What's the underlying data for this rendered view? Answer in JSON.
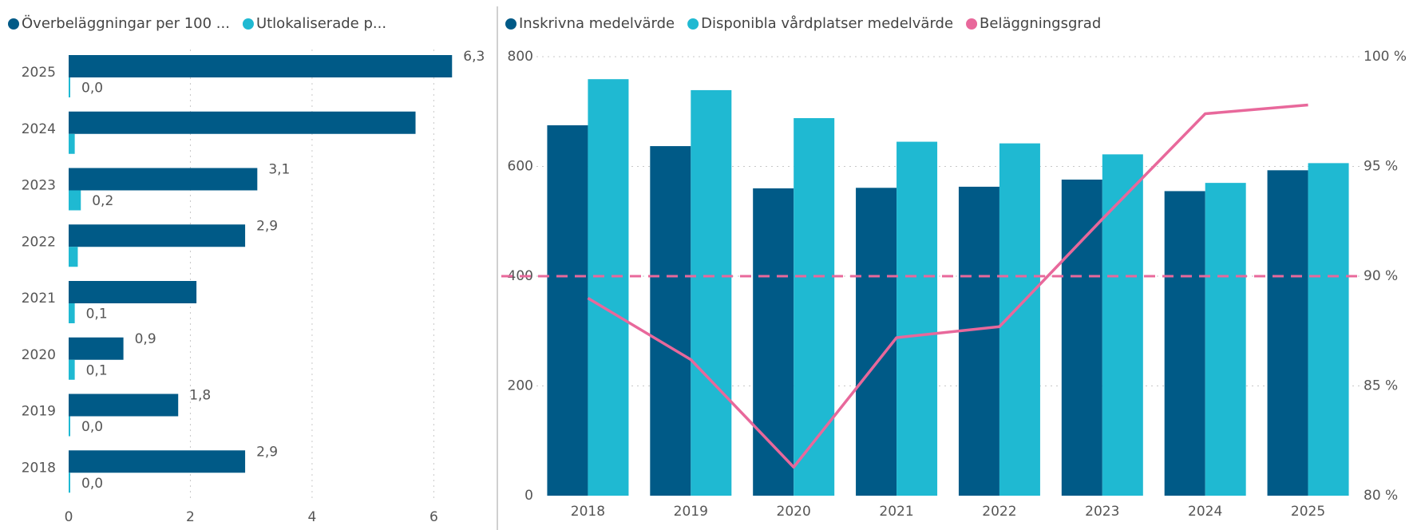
{
  "chart_data": [
    {
      "type": "hbar",
      "categories": [
        "2025",
        "2024",
        "2023",
        "2022",
        "2021",
        "2020",
        "2019",
        "2018"
      ],
      "series": [
        {
          "name": "Överbeläggningar per 100 ...",
          "color": "#005a87",
          "values": [
            6.3,
            5.7,
            3.1,
            2.9,
            2.1,
            0.9,
            1.8,
            2.9
          ],
          "value_labels": [
            "6,3",
            null,
            "3,1",
            "2,9",
            null,
            "0,9",
            "1,8",
            "2,9"
          ]
        },
        {
          "name": "Utlokaliserade p...",
          "color": "#1fb9d2",
          "values": [
            0.0,
            0.1,
            0.2,
            0.15,
            0.1,
            0.1,
            0.0,
            0.0
          ],
          "value_labels": [
            "0,0",
            null,
            "0,2",
            null,
            "0,1",
            "0,1",
            "0,0",
            "0,0"
          ]
        }
      ],
      "xlim": [
        0,
        6.9
      ],
      "xticks": [
        0,
        2,
        4,
        6
      ],
      "grid": true
    },
    {
      "type": "combo",
      "categories": [
        "2018",
        "2019",
        "2020",
        "2021",
        "2022",
        "2023",
        "2024",
        "2025"
      ],
      "series": [
        {
          "name": "Inskrivna medelvärde",
          "color": "#005a87",
          "type": "bar",
          "values": [
            675,
            637,
            560,
            561,
            563,
            576,
            555,
            593
          ]
        },
        {
          "name": "Disponibla vårdplatser medelvärde",
          "color": "#1fb9d2",
          "type": "bar",
          "values": [
            759,
            739,
            688,
            645,
            642,
            622,
            570,
            606
          ]
        },
        {
          "name": "Beläggningsgrad",
          "color": "#e8689b",
          "type": "line",
          "axis": "y2",
          "values": [
            89.0,
            86.2,
            81.3,
            87.2,
            87.7,
            92.6,
            97.4,
            97.8
          ]
        }
      ],
      "ylim": [
        0,
        800
      ],
      "yticks": [
        0,
        200,
        400,
        600,
        800
      ],
      "y2lim": [
        80,
        100
      ],
      "y2ticks": [
        {
          "value": 80,
          "label": "80 %"
        },
        {
          "value": 85,
          "label": "85 %"
        },
        {
          "value": 90,
          "label": "90 %"
        },
        {
          "value": 95,
          "label": "95 %"
        },
        {
          "value": 100,
          "label": "100 %"
        }
      ],
      "y2_reference": 90,
      "grid": true
    }
  ]
}
